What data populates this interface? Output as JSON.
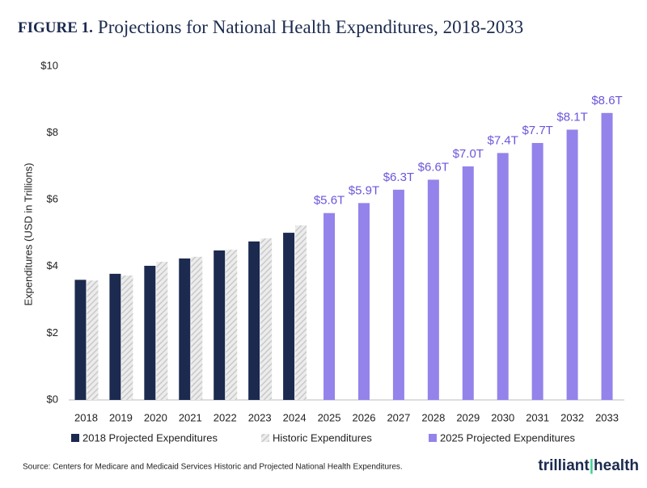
{
  "chart_data": {
    "type": "bar",
    "title_prefix": "FIGURE 1.",
    "title": "Projections for National Health Expenditures, 2018-2033",
    "y_label": "Expenditures (USD in Trillions)",
    "categories": [
      "2018",
      "2019",
      "2020",
      "2021",
      "2022",
      "2023",
      "2024",
      "2025",
      "2026",
      "2027",
      "2028",
      "2029",
      "2030",
      "2031",
      "2032",
      "2033"
    ],
    "series": [
      {
        "name": "2018 Projected Expenditures",
        "color": "#1b2a4e",
        "values": [
          3.6,
          3.78,
          4.02,
          4.24,
          4.48,
          4.75,
          5.01,
          null,
          null,
          null,
          null,
          null,
          null,
          null,
          null,
          null
        ]
      },
      {
        "name": "Historic Expenditures",
        "color": "#c9c9c9",
        "pattern": "hatched",
        "values": [
          3.58,
          3.73,
          4.14,
          4.29,
          4.5,
          4.84,
          5.23,
          null,
          null,
          null,
          null,
          null,
          null,
          null,
          null,
          null
        ]
      },
      {
        "name": "2025 Projected Expenditures",
        "color": "#9483ea",
        "label_color": "#6b55dc",
        "values": [
          null,
          null,
          null,
          null,
          null,
          null,
          null,
          5.6,
          5.9,
          6.3,
          6.6,
          7.0,
          7.4,
          7.7,
          8.1,
          8.6
        ],
        "value_labels": [
          null,
          null,
          null,
          null,
          null,
          null,
          null,
          "$5.6T",
          "$5.9T",
          "$6.3T",
          "$6.6T",
          "$7.0T",
          "$7.4T",
          "$7.7T",
          "$8.1T",
          "$8.6T"
        ]
      }
    ],
    "ylim": [
      0,
      10
    ],
    "yticks": [
      {
        "value": 0,
        "label": "$0"
      },
      {
        "value": 2,
        "label": "$2"
      },
      {
        "value": 4,
        "label": "$4"
      },
      {
        "value": 6,
        "label": "$6"
      },
      {
        "value": 8,
        "label": "$8"
      },
      {
        "value": 10,
        "label": "$10"
      }
    ],
    "grid": false,
    "legend": "bottom",
    "source": "Source: Centers for Medicare and Medicaid Services Historic and Projected National Health Expenditures.",
    "logo": [
      "trilliant",
      "health"
    ]
  }
}
